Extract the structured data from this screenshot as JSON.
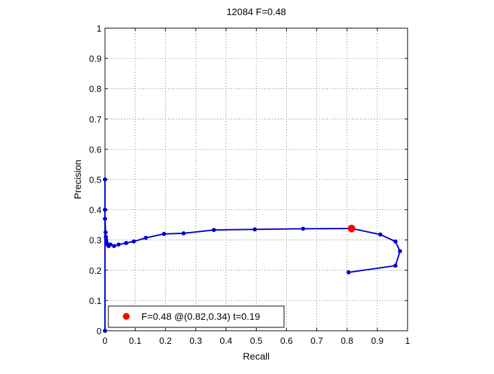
{
  "chart_data": {
    "type": "line",
    "title": "12084 F=0.48",
    "xlabel": "Recall",
    "ylabel": "Precision",
    "xlim": [
      0,
      1
    ],
    "ylim": [
      0,
      1
    ],
    "xticks": [
      "0",
      "0.1",
      "0.2",
      "0.3",
      "0.4",
      "0.5",
      "0.6",
      "0.7",
      "0.8",
      "0.9",
      "1"
    ],
    "yticks": [
      "0",
      "0.1",
      "0.2",
      "0.3",
      "0.4",
      "0.5",
      "0.6",
      "0.7",
      "0.8",
      "0.9",
      "1"
    ],
    "grid": true,
    "legend_position": "bottom-left",
    "series": [
      {
        "color": "#0000cc",
        "x": [
          0.0,
          0.0,
          0.0,
          0.0,
          0.002,
          0.003,
          0.004,
          0.006,
          0.008,
          0.012,
          0.018,
          0.03,
          0.045,
          0.07,
          0.095,
          0.135,
          0.195,
          0.26,
          0.36,
          0.495,
          0.655,
          0.815,
          0.91,
          0.96,
          0.975,
          0.96,
          0.805
        ],
        "y": [
          0.0,
          0.5,
          0.4,
          0.37,
          0.325,
          0.31,
          0.3,
          0.29,
          0.285,
          0.28,
          0.285,
          0.28,
          0.285,
          0.29,
          0.295,
          0.307,
          0.32,
          0.322,
          0.333,
          0.335,
          0.337,
          0.338,
          0.318,
          0.295,
          0.263,
          0.215,
          0.193
        ]
      }
    ],
    "highlight": {
      "x": 0.815,
      "y": 0.338,
      "color": "#ff0000",
      "label": "F=0.48 @(0.82,0.34) t=0.19"
    }
  }
}
